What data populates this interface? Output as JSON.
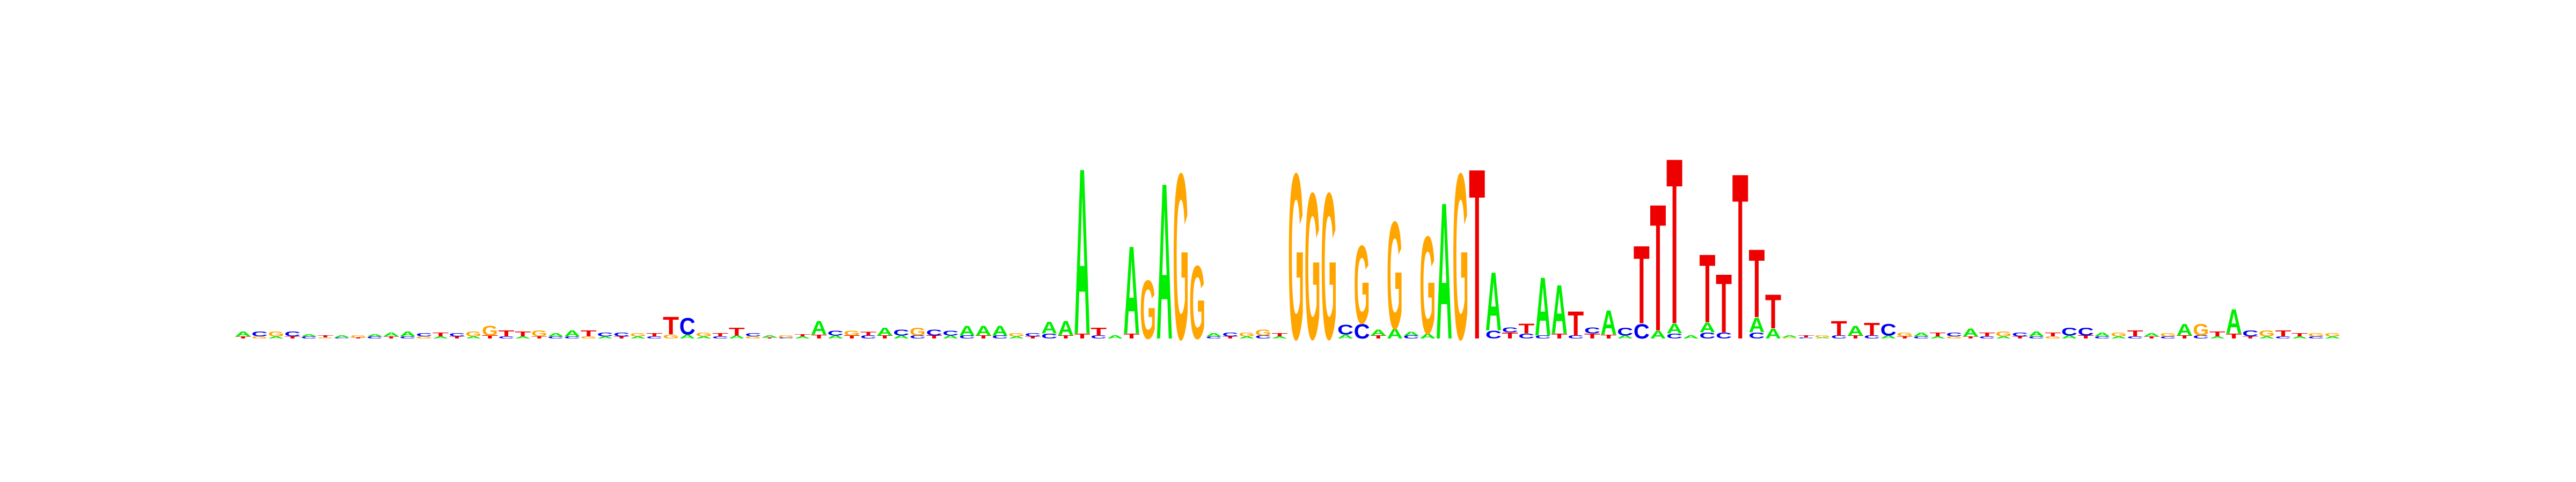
{
  "chart_data": {
    "type": "logo",
    "colors": {
      "A": "#00ee00",
      "C": "#0000ee",
      "G": "#ffa500",
      "T": "#ee0000"
    },
    "positions": [
      [
        [
          "T",
          0.02
        ],
        [
          "A",
          0.05
        ]
      ],
      [
        [
          "G",
          0.02
        ],
        [
          "C",
          0.05
        ]
      ],
      [
        [
          "A",
          0.02
        ],
        [
          "G",
          0.05
        ]
      ],
      [
        [
          "T",
          0.02
        ],
        [
          "C",
          0.05
        ]
      ],
      [
        [
          "C",
          0.02
        ],
        [
          "A",
          0.02
        ]
      ],
      [
        [
          "G",
          0.01
        ],
        [
          "T",
          0.02
        ]
      ],
      [
        [
          "C",
          0.01
        ],
        [
          "A",
          0.02
        ]
      ],
      [
        [
          "T",
          0.01
        ],
        [
          "G",
          0.02
        ]
      ],
      [
        [
          "C",
          0.02
        ],
        [
          "A",
          0.02
        ]
      ],
      [
        [
          "T",
          0.02
        ],
        [
          "A",
          0.04
        ]
      ],
      [
        [
          "C",
          0.02
        ],
        [
          "A",
          0.05
        ]
      ],
      [
        [
          "G",
          0.02
        ],
        [
          "C",
          0.03
        ]
      ],
      [
        [
          "A",
          0.02
        ],
        [
          "T",
          0.04
        ]
      ],
      [
        [
          "T",
          0.02
        ],
        [
          "C",
          0.03
        ]
      ],
      [
        [
          "A",
          0.02
        ],
        [
          "G",
          0.05
        ]
      ],
      [
        [
          "T",
          0.03
        ],
        [
          "G",
          0.1
        ]
      ],
      [
        [
          "C",
          0.02
        ],
        [
          "T",
          0.06
        ]
      ],
      [
        [
          "A",
          0.02
        ],
        [
          "T",
          0.05
        ]
      ],
      [
        [
          "T",
          0.02
        ],
        [
          "G",
          0.06
        ]
      ],
      [
        [
          "C",
          0.02
        ],
        [
          "A",
          0.03
        ]
      ],
      [
        [
          "C",
          0.02
        ],
        [
          "A",
          0.06
        ]
      ],
      [
        [
          "G",
          0.02
        ],
        [
          "T",
          0.06
        ]
      ],
      [
        [
          "A",
          0.02
        ],
        [
          "C",
          0.04
        ]
      ],
      [
        [
          "T",
          0.02
        ],
        [
          "C",
          0.04
        ]
      ],
      [
        [
          "A",
          0.02
        ],
        [
          "G",
          0.03
        ]
      ],
      [
        [
          "C",
          0.02
        ],
        [
          "T",
          0.03
        ]
      ],
      [
        [
          "G",
          0.04
        ],
        [
          "T",
          0.18
        ]
      ],
      [
        [
          "A",
          0.04
        ],
        [
          "C",
          0.17
        ]
      ],
      [
        [
          "A",
          0.02
        ],
        [
          "G",
          0.04
        ]
      ],
      [
        [
          "C",
          0.02
        ],
        [
          "T",
          0.03
        ]
      ],
      [
        [
          "A",
          0.03
        ],
        [
          "T",
          0.08
        ]
      ],
      [
        [
          "G",
          0.02
        ],
        [
          "C",
          0.03
        ]
      ],
      [
        [
          "T",
          0.01
        ],
        [
          "A",
          0.02
        ]
      ],
      [
        [
          "C",
          0.01
        ],
        [
          "G",
          0.02
        ]
      ],
      [
        [
          "A",
          0.02
        ],
        [
          "T",
          0.02
        ]
      ],
      [
        [
          "T",
          0.04
        ],
        [
          "A",
          0.14
        ]
      ],
      [
        [
          "A",
          0.03
        ],
        [
          "C",
          0.05
        ]
      ],
      [
        [
          "T",
          0.03
        ],
        [
          "G",
          0.05
        ]
      ],
      [
        [
          "C",
          0.03
        ],
        [
          "T",
          0.04
        ]
      ],
      [
        [
          "T",
          0.03
        ],
        [
          "A",
          0.08
        ]
      ],
      [
        [
          "A",
          0.03
        ],
        [
          "C",
          0.06
        ]
      ],
      [
        [
          "C",
          0.03
        ],
        [
          "G",
          0.08
        ]
      ],
      [
        [
          "T",
          0.03
        ],
        [
          "C",
          0.06
        ]
      ],
      [
        [
          "A",
          0.03
        ],
        [
          "C",
          0.05
        ]
      ],
      [
        [
          "C",
          0.03
        ],
        [
          "A",
          0.1
        ]
      ],
      [
        [
          "T",
          0.03
        ],
        [
          "A",
          0.1
        ]
      ],
      [
        [
          "C",
          0.03
        ],
        [
          "A",
          0.1
        ]
      ],
      [
        [
          "A",
          0.02
        ],
        [
          "G",
          0.03
        ]
      ],
      [
        [
          "T",
          0.02
        ],
        [
          "C",
          0.03
        ]
      ],
      [
        [
          "C",
          0.05
        ],
        [
          "A",
          0.12
        ]
      ],
      [
        [
          "T",
          0.03
        ],
        [
          "A",
          0.15
        ]
      ],
      [
        [
          "T",
          0.05
        ],
        [
          "A",
          1.7
        ]
      ],
      [
        [
          "C",
          0.03
        ],
        [
          "T",
          0.08
        ]
      ],
      [
        [
          "A",
          0.03
        ]
      ],
      [
        [
          "T",
          0.05
        ],
        [
          "A",
          0.9
        ]
      ],
      [
        [
          "G",
          0.6
        ]
      ],
      [
        [
          "A",
          1.6
        ]
      ],
      [
        [
          "G",
          1.7
        ]
      ],
      [
        [
          "G",
          0.75
        ]
      ],
      [
        [
          "C",
          0.02
        ],
        [
          "A",
          0.03
        ]
      ],
      [
        [
          "T",
          0.02
        ],
        [
          "C",
          0.04
        ]
      ],
      [
        [
          "A",
          0.02
        ],
        [
          "G",
          0.04
        ]
      ],
      [
        [
          "C",
          0.03
        ],
        [
          "G",
          0.06
        ]
      ],
      [
        [
          "A",
          0.02
        ],
        [
          "T",
          0.03
        ]
      ],
      [
        [
          "G",
          1.7
        ]
      ],
      [
        [
          "G",
          1.5
        ]
      ],
      [
        [
          "G",
          1.5
        ]
      ],
      [
        [
          "A",
          0.04
        ],
        [
          "C",
          0.1
        ]
      ],
      [
        [
          "C",
          0.15
        ],
        [
          "G",
          0.8
        ]
      ],
      [
        [
          "T",
          0.03
        ],
        [
          "A",
          0.06
        ]
      ],
      [
        [
          "A",
          0.1
        ],
        [
          "G",
          1.1
        ]
      ],
      [
        [
          "C",
          0.03
        ],
        [
          "A",
          0.04
        ]
      ],
      [
        [
          "A",
          0.05
        ],
        [
          "G",
          1.0
        ]
      ],
      [
        [
          "A",
          1.4
        ]
      ],
      [
        [
          "G",
          1.7
        ]
      ],
      [
        [
          "T",
          1.75
        ]
      ],
      [
        [
          "C",
          0.08
        ],
        [
          "A",
          0.6
        ]
      ],
      [
        [
          "T",
          0.06
        ],
        [
          "C",
          0.05
        ]
      ],
      [
        [
          "C",
          0.05
        ],
        [
          "T",
          0.1
        ]
      ],
      [
        [
          "C",
          0.03
        ],
        [
          "A",
          0.6
        ]
      ],
      [
        [
          "T",
          0.05
        ],
        [
          "A",
          0.5
        ]
      ],
      [
        [
          "C",
          0.03
        ],
        [
          "T",
          0.25
        ]
      ],
      [
        [
          "T",
          0.05
        ],
        [
          "C",
          0.06
        ]
      ],
      [
        [
          "T",
          0.04
        ],
        [
          "A",
          0.25
        ]
      ],
      [
        [
          "A",
          0.03
        ],
        [
          "C",
          0.08
        ]
      ],
      [
        [
          "C",
          0.15
        ],
        [
          "T",
          0.8
        ]
      ],
      [
        [
          "A",
          0.08
        ],
        [
          "T",
          1.3
        ]
      ],
      [
        [
          "C",
          0.05
        ],
        [
          "A",
          0.1
        ],
        [
          "T",
          1.7
        ]
      ],
      [
        [
          "A",
          0.03
        ]
      ],
      [
        [
          "C",
          0.06
        ],
        [
          "A",
          0.1
        ],
        [
          "T",
          0.7
        ]
      ],
      [
        [
          "C",
          0.06
        ],
        [
          "T",
          0.6
        ]
      ],
      [
        [
          "T",
          1.7
        ]
      ],
      [
        [
          "C",
          0.06
        ],
        [
          "A",
          0.15
        ],
        [
          "T",
          0.7
        ]
      ],
      [
        [
          "A",
          0.1
        ],
        [
          "T",
          0.35
        ]
      ],
      [
        [
          "G",
          0.01
        ],
        [
          "A",
          0.02
        ]
      ],
      [
        [
          "C",
          0.01
        ],
        [
          "T",
          0.02
        ]
      ],
      [
        [
          "A",
          0.01
        ],
        [
          "G",
          0.02
        ]
      ],
      [
        [
          "C",
          0.03
        ],
        [
          "T",
          0.15
        ]
      ],
      [
        [
          "T",
          0.03
        ],
        [
          "A",
          0.1
        ]
      ],
      [
        [
          "C",
          0.03
        ],
        [
          "T",
          0.13
        ]
      ],
      [
        [
          "A",
          0.03
        ],
        [
          "C",
          0.12
        ]
      ],
      [
        [
          "T",
          0.02
        ],
        [
          "G",
          0.04
        ]
      ],
      [
        [
          "C",
          0.02
        ],
        [
          "A",
          0.04
        ]
      ],
      [
        [
          "A",
          0.02
        ],
        [
          "T",
          0.04
        ]
      ],
      [
        [
          "G",
          0.02
        ],
        [
          "C",
          0.04
        ]
      ],
      [
        [
          "T",
          0.02
        ],
        [
          "A",
          0.08
        ]
      ],
      [
        [
          "C",
          0.02
        ],
        [
          "T",
          0.04
        ]
      ],
      [
        [
          "A",
          0.02
        ],
        [
          "G",
          0.05
        ]
      ],
      [
        [
          "T",
          0.02
        ],
        [
          "C",
          0.04
        ]
      ],
      [
        [
          "C",
          0.02
        ],
        [
          "A",
          0.05
        ]
      ],
      [
        [
          "G",
          0.02
        ],
        [
          "T",
          0.04
        ]
      ],
      [
        [
          "A",
          0.03
        ],
        [
          "C",
          0.08
        ]
      ],
      [
        [
          "T",
          0.03
        ],
        [
          "C",
          0.08
        ]
      ],
      [
        [
          "C",
          0.02
        ],
        [
          "A",
          0.04
        ]
      ],
      [
        [
          "A",
          0.02
        ],
        [
          "G",
          0.04
        ]
      ],
      [
        [
          "C",
          0.02
        ],
        [
          "T",
          0.06
        ]
      ],
      [
        [
          "T",
          0.02
        ],
        [
          "A",
          0.03
        ]
      ],
      [
        [
          "C",
          0.02
        ],
        [
          "G",
          0.03
        ]
      ],
      [
        [
          "T",
          0.03
        ],
        [
          "A",
          0.12
        ]
      ],
      [
        [
          "C",
          0.03
        ],
        [
          "G",
          0.12
        ]
      ],
      [
        [
          "A",
          0.02
        ],
        [
          "T",
          0.05
        ]
      ],
      [
        [
          "T",
          0.05
        ],
        [
          "A",
          0.25
        ]
      ],
      [
        [
          "T",
          0.02
        ],
        [
          "C",
          0.06
        ]
      ],
      [
        [
          "A",
          0.02
        ],
        [
          "G",
          0.06
        ]
      ],
      [
        [
          "C",
          0.02
        ],
        [
          "T",
          0.06
        ]
      ],
      [
        [
          "A",
          0.02
        ],
        [
          "T",
          0.03
        ]
      ],
      [
        [
          "C",
          0.02
        ],
        [
          "G",
          0.03
        ]
      ],
      [
        [
          "A",
          0.02
        ],
        [
          "G",
          0.03
        ]
      ]
    ]
  }
}
